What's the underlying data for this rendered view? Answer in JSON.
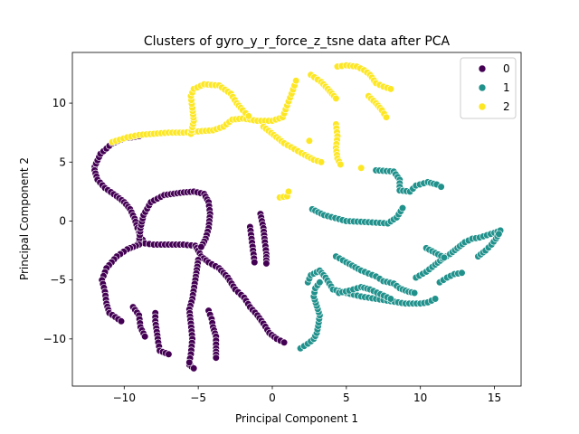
{
  "chart_data": {
    "type": "scatter",
    "title": "Clusters of gyro_y_r_force_z_tsne data after PCA",
    "xlabel": "Principal Component 1",
    "ylabel": "Principal Component 2",
    "xlim": [
      -13.5,
      16.8
    ],
    "ylim": [
      -14.0,
      14.3
    ],
    "xticks": [
      -10,
      -5,
      0,
      5,
      10,
      15
    ],
    "xtick_labels": [
      "−10",
      "−5",
      "0",
      "5",
      "10",
      "15"
    ],
    "yticks": [
      -10,
      -5,
      0,
      5,
      10
    ],
    "ytick_labels": [
      "−10",
      "−5",
      "0",
      "5",
      "10"
    ],
    "grid": false,
    "legend": {
      "placement": "top-right",
      "title": ""
    },
    "marker": {
      "edge_color": "#ffffff"
    },
    "series": [
      {
        "name": "0",
        "color": "#440154",
        "paths": [
          [
            [
              -12.0,
              4.6
            ],
            [
              -11.6,
              5.7
            ],
            [
              -10.8,
              6.6
            ],
            [
              -10.0,
              7.0
            ],
            [
              -9.0,
              7.2
            ]
          ],
          [
            [
              -12.0,
              4.3
            ],
            [
              -11.8,
              3.5
            ],
            [
              -11.3,
              2.8
            ],
            [
              -10.5,
              2.1
            ],
            [
              -10.0,
              1.6
            ],
            [
              -9.6,
              1.0
            ],
            [
              -9.3,
              0.2
            ],
            [
              -9.1,
              -0.6
            ],
            [
              -8.9,
              -1.3
            ],
            [
              -8.6,
              -1.9
            ],
            [
              -8.0,
              -2.0
            ],
            [
              -7.0,
              -2.0
            ],
            [
              -6.0,
              -2.0
            ],
            [
              -5.2,
              -2.1
            ],
            [
              -5.0,
              -2.5
            ],
            [
              -4.8,
              -3.0
            ],
            [
              -4.3,
              -3.5
            ],
            [
              -3.6,
              -4.0
            ],
            [
              -3.0,
              -4.8
            ],
            [
              -2.5,
              -5.8
            ],
            [
              -1.9,
              -6.5
            ],
            [
              -1.5,
              -7.3
            ],
            [
              -1.0,
              -8.0
            ],
            [
              -0.6,
              -8.7
            ],
            [
              -0.2,
              -9.5
            ],
            [
              0.3,
              -10.0
            ],
            [
              0.8,
              -10.3
            ]
          ],
          [
            [
              -9.0,
              -1.8
            ],
            [
              -8.9,
              -0.6
            ],
            [
              -8.7,
              0.5
            ],
            [
              -8.2,
              1.6
            ],
            [
              -7.3,
              2.2
            ],
            [
              -6.2,
              2.4
            ],
            [
              -5.3,
              2.5
            ],
            [
              -4.6,
              2.3
            ],
            [
              -4.3,
              1.6
            ],
            [
              -4.2,
              0.6
            ],
            [
              -4.3,
              -0.6
            ],
            [
              -4.5,
              -1.5
            ],
            [
              -4.8,
              -2.2
            ]
          ],
          [
            [
              -9.0,
              -2.0
            ],
            [
              -9.8,
              -2.4
            ],
            [
              -10.5,
              -3.0
            ],
            [
              -11.2,
              -4.0
            ],
            [
              -11.5,
              -5.0
            ],
            [
              -11.3,
              -6.0
            ],
            [
              -11.2,
              -7.0
            ],
            [
              -11.0,
              -7.8
            ],
            [
              -10.2,
              -8.5
            ]
          ],
          [
            [
              -9.4,
              -7.3
            ],
            [
              -9.0,
              -8.0
            ],
            [
              -8.9,
              -9.0
            ],
            [
              -8.6,
              -9.8
            ]
          ],
          [
            [
              -7.9,
              -7.8
            ],
            [
              -7.9,
              -8.5
            ],
            [
              -7.8,
              -9.4
            ],
            [
              -7.7,
              -10.3
            ],
            [
              -7.6,
              -11.0
            ],
            [
              -7.0,
              -11.3
            ]
          ],
          [
            [
              -5.6,
              -12.2
            ],
            [
              -5.3,
              -12.5
            ]
          ],
          [
            [
              -5.0,
              -3.3
            ],
            [
              -5.2,
              -5.0
            ],
            [
              -5.4,
              -6.6
            ],
            [
              -5.6,
              -7.5
            ],
            [
              -5.5,
              -8.7
            ],
            [
              -5.4,
              -10.0
            ],
            [
              -5.5,
              -11.3
            ],
            [
              -5.6,
              -12.0
            ]
          ],
          [
            [
              -4.3,
              -7.6
            ],
            [
              -4.1,
              -8.3
            ],
            [
              -4.0,
              -9.0
            ],
            [
              -3.8,
              -9.8
            ],
            [
              -3.8,
              -10.8
            ],
            [
              -3.8,
              -11.6
            ]
          ],
          [
            [
              -1.5,
              -0.5
            ],
            [
              -1.4,
              -1.5
            ],
            [
              -1.3,
              -2.5
            ],
            [
              -1.2,
              -3.5
            ]
          ],
          [
            [
              -0.8,
              0.6
            ],
            [
              -0.6,
              -0.6
            ],
            [
              -0.5,
              -1.8
            ],
            [
              -0.4,
              -2.8
            ],
            [
              -0.4,
              -3.6
            ]
          ]
        ]
      },
      {
        "name": "1",
        "color": "#21918c",
        "paths": [
          [
            [
              7.0,
              4.3
            ],
            [
              8.2,
              4.2
            ],
            [
              8.6,
              3.5
            ],
            [
              8.6,
              2.6
            ],
            [
              9.3,
              2.5
            ],
            [
              9.7,
              3.0
            ],
            [
              10.5,
              3.3
            ],
            [
              11.1,
              3.1
            ],
            [
              11.4,
              2.9
            ]
          ],
          [
            [
              2.7,
              1.0
            ],
            [
              3.5,
              0.5
            ],
            [
              5.0,
              0.0
            ],
            [
              6.5,
              -0.1
            ],
            [
              7.8,
              -0.2
            ],
            [
              8.4,
              0.3
            ],
            [
              8.8,
              1.1
            ]
          ],
          [
            [
              4.3,
              -3.0
            ],
            [
              5.0,
              -3.5
            ],
            [
              6.0,
              -4.2
            ],
            [
              7.0,
              -4.7
            ],
            [
              7.5,
              -5.1
            ],
            [
              8.2,
              -5.3
            ],
            [
              8.6,
              -5.7
            ],
            [
              9.2,
              -6.0
            ],
            [
              9.6,
              -6.1
            ]
          ],
          [
            [
              1.9,
              -10.8
            ],
            [
              2.4,
              -10.4
            ],
            [
              2.8,
              -10.0
            ],
            [
              3.0,
              -9.5
            ],
            [
              3.1,
              -8.9
            ],
            [
              3.2,
              -8.0
            ],
            [
              3.0,
              -7.2
            ],
            [
              2.8,
              -6.4
            ],
            [
              2.9,
              -5.7
            ],
            [
              3.2,
              -5.2
            ]
          ],
          [
            [
              2.4,
              -5.2
            ],
            [
              2.6,
              -4.6
            ],
            [
              3.2,
              -4.2
            ],
            [
              3.6,
              -4.8
            ],
            [
              4.1,
              -5.8
            ],
            [
              5.0,
              -6.1
            ],
            [
              6.0,
              -6.4
            ],
            [
              7.0,
              -6.6
            ],
            [
              8.0,
              -6.8
            ],
            [
              9.0,
              -7.0
            ],
            [
              10.0,
              -7.0
            ],
            [
              10.5,
              -6.9
            ],
            [
              11.0,
              -6.6
            ]
          ],
          [
            [
              4.5,
              -6.1
            ],
            [
              5.2,
              -5.9
            ],
            [
              6.0,
              -5.6
            ],
            [
              6.6,
              -5.8
            ],
            [
              7.3,
              -6.2
            ],
            [
              8.0,
              -6.6
            ]
          ],
          [
            [
              9.7,
              -4.8
            ],
            [
              10.4,
              -4.3
            ],
            [
              11.0,
              -3.7
            ],
            [
              11.5,
              -3.2
            ],
            [
              12.0,
              -2.8
            ],
            [
              12.5,
              -2.3
            ],
            [
              13.0,
              -1.8
            ],
            [
              13.5,
              -1.5
            ],
            [
              14.0,
              -1.4
            ],
            [
              14.5,
              -1.2
            ],
            [
              15.0,
              -1.0
            ],
            [
              15.4,
              -0.8
            ]
          ],
          [
            [
              11.3,
              -5.2
            ],
            [
              11.8,
              -4.8
            ],
            [
              12.3,
              -4.5
            ],
            [
              12.8,
              -4.4
            ]
          ],
          [
            [
              13.9,
              -3.0
            ],
            [
              14.4,
              -2.5
            ],
            [
              14.8,
              -2.0
            ],
            [
              15.1,
              -1.5
            ],
            [
              15.3,
              -1.1
            ]
          ],
          [
            [
              10.4,
              -2.3
            ],
            [
              11.0,
              -2.7
            ],
            [
              11.6,
              -3.1
            ]
          ]
        ]
      },
      {
        "name": "2",
        "color": "#fde725",
        "paths": [
          [
            [
              -10.8,
              6.7
            ],
            [
              -9.8,
              7.1
            ],
            [
              -9.0,
              7.3
            ],
            [
              -8.0,
              7.4
            ],
            [
              -7.0,
              7.5
            ],
            [
              -6.0,
              7.5
            ],
            [
              -5.0,
              7.6
            ],
            [
              -4.0,
              7.7
            ],
            [
              -3.3,
              8.0
            ],
            [
              -2.7,
              8.6
            ],
            [
              -2.0,
              8.7
            ],
            [
              -1.0,
              8.5
            ],
            [
              0.0,
              8.5
            ],
            [
              0.7,
              8.8
            ],
            [
              1.0,
              9.8
            ],
            [
              1.3,
              10.8
            ],
            [
              1.5,
              11.5
            ],
            [
              1.6,
              11.9
            ]
          ],
          [
            [
              -5.5,
              7.4
            ],
            [
              -5.3,
              8.5
            ],
            [
              -5.4,
              9.6
            ],
            [
              -5.5,
              10.6
            ],
            [
              -5.3,
              11.2
            ],
            [
              -4.6,
              11.6
            ],
            [
              -3.6,
              11.5
            ],
            [
              -2.8,
              10.8
            ],
            [
              -2.4,
              10.0
            ],
            [
              -2.0,
              9.4
            ],
            [
              -1.6,
              8.9
            ]
          ],
          [
            [
              -0.6,
              8.0
            ],
            [
              0.1,
              7.3
            ],
            [
              0.8,
              6.6
            ],
            [
              1.5,
              6.1
            ],
            [
              2.2,
              5.6
            ],
            [
              2.8,
              5.2
            ],
            [
              3.3,
              5.0
            ]
          ],
          [
            [
              2.6,
              12.4
            ],
            [
              3.3,
              11.8
            ],
            [
              3.9,
              11.0
            ],
            [
              4.3,
              10.4
            ]
          ],
          [
            [
              4.3,
              8.2
            ],
            [
              4.4,
              7.2
            ],
            [
              4.3,
              6.2
            ],
            [
              4.4,
              5.3
            ],
            [
              4.6,
              4.8
            ]
          ],
          [
            [
              4.4,
              13.1
            ],
            [
              5.0,
              13.2
            ],
            [
              5.7,
              13.1
            ],
            [
              6.2,
              12.8
            ],
            [
              6.6,
              12.4
            ],
            [
              7.0,
              11.7
            ],
            [
              7.5,
              11.4
            ],
            [
              8.0,
              11.2
            ]
          ],
          [
            [
              6.5,
              10.6
            ],
            [
              7.0,
              10.0
            ],
            [
              7.4,
              9.4
            ],
            [
              7.7,
              8.8
            ]
          ],
          [
            [
              2.5,
              6.8
            ]
          ],
          [
            [
              6.0,
              4.5
            ]
          ],
          [
            [
              0.5,
              2.0
            ],
            [
              1.0,
              2.1
            ],
            [
              1.1,
              2.5
            ]
          ]
        ]
      }
    ]
  }
}
